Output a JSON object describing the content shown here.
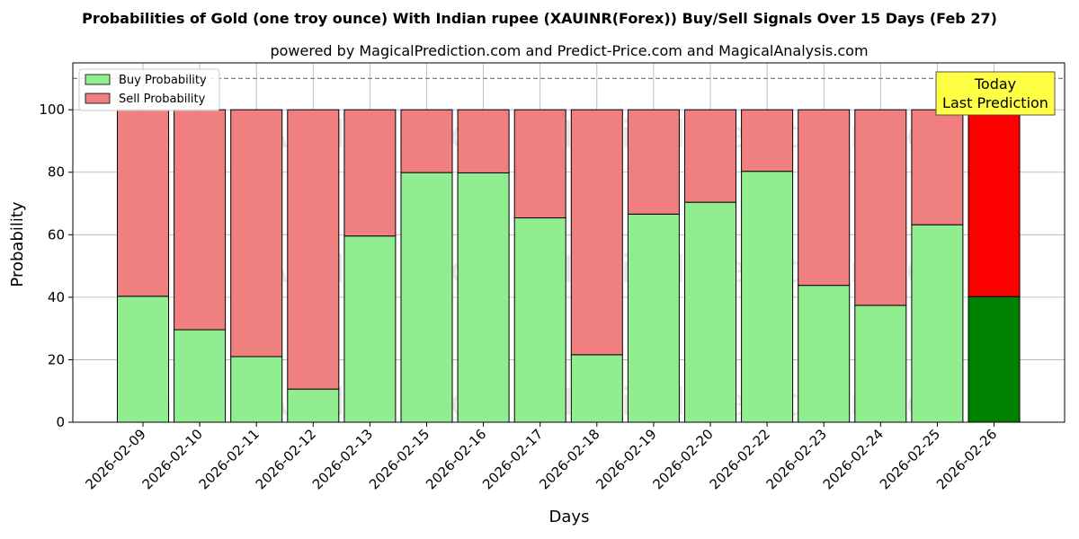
{
  "chart_data": {
    "type": "bar",
    "stacked": true,
    "title": "Probabilities of Gold (one troy ounce) With Indian rupee (XAUINR(Forex)) Buy/Sell Signals Over 15 Days (Feb 27)",
    "subtitle": "powered by MagicalPrediction.com and Predict-Price.com and MagicalAnalysis.com",
    "xlabel": "Days",
    "ylabel": "Probability",
    "ylim": [
      0,
      115
    ],
    "yticks": [
      0,
      20,
      40,
      60,
      80,
      100
    ],
    "reference_line": 110,
    "grid": true,
    "legend_position": "top-left",
    "categories": [
      "2026-02-09",
      "2026-02-10",
      "2026-02-11",
      "2026-02-12",
      "2026-02-13",
      "2026-02-15",
      "2026-02-16",
      "2026-02-17",
      "2026-02-18",
      "2026-02-19",
      "2026-02-20",
      "2026-02-22",
      "2026-02-23",
      "2026-02-24",
      "2026-02-25",
      "2026-02-26"
    ],
    "series": [
      {
        "name": "Buy Probability",
        "color": "#90ee90",
        "values": [
          40.3,
          29.6,
          21.0,
          10.6,
          59.6,
          79.9,
          79.8,
          65.4,
          21.6,
          66.6,
          70.4,
          80.3,
          43.8,
          37.4,
          63.2,
          40.2
        ]
      },
      {
        "name": "Sell Probability",
        "color": "#f08080",
        "values": [
          59.7,
          70.4,
          79.0,
          89.4,
          40.4,
          20.1,
          20.2,
          34.6,
          78.4,
          33.4,
          29.6,
          19.7,
          56.2,
          62.6,
          36.8,
          59.8
        ]
      }
    ],
    "highlight": {
      "index": 15,
      "buy_color": "#008000",
      "sell_color": "#ff0000"
    },
    "annotation": {
      "line1": "Today",
      "line2": "Last Prediction",
      "color": "#ffff44"
    },
    "watermarks": [
      "MagicalAnalysis.com",
      "MagicalPrediction.com"
    ]
  }
}
